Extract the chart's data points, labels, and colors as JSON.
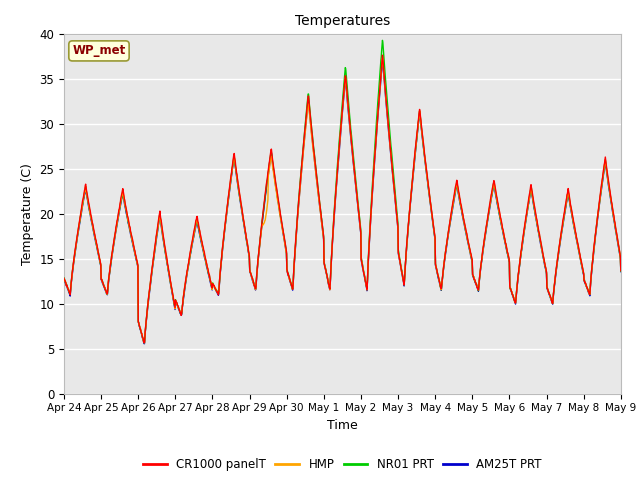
{
  "title": "Temperatures",
  "ylabel": "Temperature (C)",
  "xlabel": "Time",
  "ylim": [
    0,
    40
  ],
  "xlim": [
    0,
    360
  ],
  "bg_color": "#e8e8e8",
  "annotation_text": "WP_met",
  "annotation_fgcolor": "#8b0000",
  "annotation_bgcolor": "#ffffdd",
  "series_colors": {
    "CR1000 panelT": "#ff0000",
    "HMP": "#ffa500",
    "NR01 PRT": "#00cc00",
    "AM25T PRT": "#0000cc"
  },
  "xtick_labels": [
    "Apr 24",
    "Apr 25",
    "Apr 26",
    "Apr 27",
    "Apr 28",
    "Apr 29",
    "Apr 30",
    "May 1",
    "May 2",
    "May 3",
    "May 4",
    "May 5",
    "May 6",
    "May 7",
    "May 8",
    "May 9"
  ],
  "xtick_positions": [
    0,
    24,
    48,
    72,
    96,
    120,
    144,
    168,
    192,
    216,
    240,
    264,
    288,
    312,
    336,
    360
  ],
  "ytick_labels": [
    "0",
    "5",
    "10",
    "15",
    "20",
    "25",
    "30",
    "35",
    "40"
  ],
  "ytick_positions": [
    0,
    5,
    10,
    15,
    20,
    25,
    30,
    35,
    40
  ],
  "daily_min": [
    11,
    11,
    5.5,
    8.7,
    11,
    11.5,
    11.5,
    11.5,
    11.5,
    12,
    11.5,
    11.5,
    10,
    10,
    11,
    11.5
  ],
  "daily_max": [
    23,
    22.5,
    20,
    19.5,
    26.5,
    27,
    33,
    35.3,
    37.5,
    31.5,
    23.5,
    23.5,
    23,
    22.5,
    26,
    25
  ],
  "peak_hour": 14,
  "min_hour": 4
}
